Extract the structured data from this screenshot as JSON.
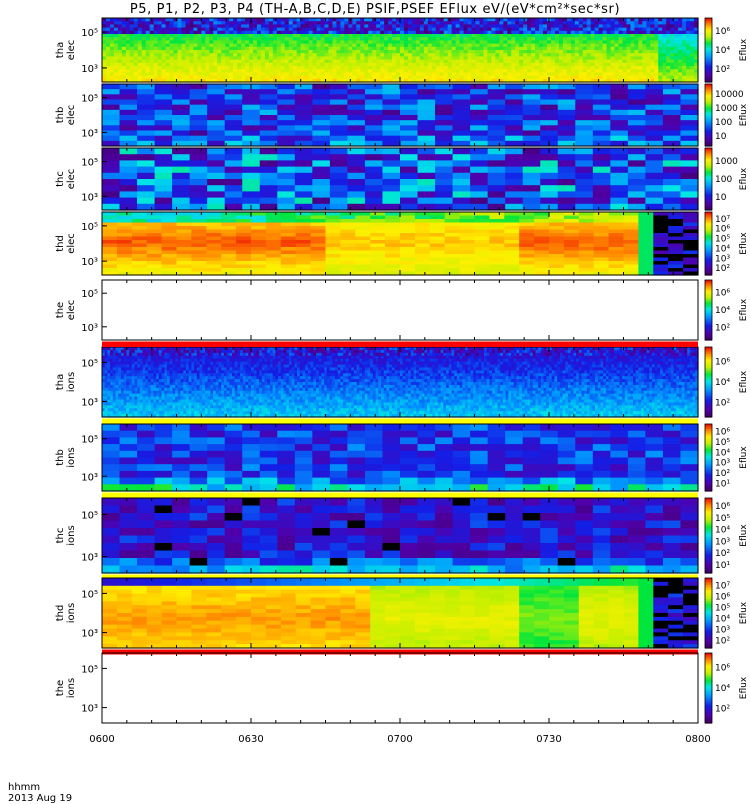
{
  "chart_data": {
    "type": "heatmap",
    "title": "P5, P1, P2, P3, P4 (TH-A,B,C,D,E) PSIF,PSEF EFlux eV/(eV*cm²*sec*sr)",
    "xlabel": "hhmm",
    "date_label": "2013 Aug 19",
    "x_ticks": [
      "0600",
      "0630",
      "0700",
      "0730",
      "0800"
    ],
    "xlim": [
      "0600",
      "0800"
    ],
    "colorbar_label": "Eflux",
    "panels": [
      {
        "name": "tha elec",
        "probe": "tha",
        "species": "elec",
        "ylog": true,
        "y_ticks": [
          "10⁵",
          "10³"
        ],
        "colorbar_ticks": [
          "10⁶",
          "10⁴",
          "10²"
        ],
        "status_bar": "none",
        "style": "elec_a"
      },
      {
        "name": "thb elec",
        "probe": "thb",
        "species": "elec",
        "ylog": true,
        "y_ticks": [
          "10⁵",
          "10³"
        ],
        "colorbar_ticks": [
          "10000",
          "1000",
          "100",
          "10"
        ],
        "status_bar": "none",
        "style": "blocky"
      },
      {
        "name": "thc elec",
        "probe": "thc",
        "species": "elec",
        "ylog": true,
        "y_ticks": [
          "10⁵",
          "10³"
        ],
        "colorbar_ticks": [
          "1000",
          "100",
          "10"
        ],
        "status_bar": "none",
        "style": "blocky2"
      },
      {
        "name": "thd elec",
        "probe": "thd",
        "species": "elec",
        "ylog": true,
        "y_ticks": [
          "10⁵",
          "10³"
        ],
        "colorbar_ticks": [
          "10⁷",
          "10⁶",
          "10⁵",
          "10⁴",
          "10³",
          "10²"
        ],
        "status_bar": "none",
        "style": "hot"
      },
      {
        "name": "the elec",
        "probe": "the",
        "species": "elec",
        "ylog": true,
        "y_ticks": [
          "10⁵",
          "10³"
        ],
        "colorbar_ticks": [
          "10⁶",
          "10⁴",
          "10²"
        ],
        "status_bar": "red",
        "style": "empty"
      },
      {
        "name": "tha ions",
        "probe": "tha",
        "species": "ions",
        "ylog": true,
        "y_ticks": [
          "10⁵",
          "10³"
        ],
        "colorbar_ticks": [
          "10⁶",
          "10⁴",
          "10²"
        ],
        "status_bar": "yellow",
        "style": "ions_a"
      },
      {
        "name": "thb ions",
        "probe": "thb",
        "species": "ions",
        "ylog": true,
        "y_ticks": [
          "10⁵",
          "10³"
        ],
        "colorbar_ticks": [
          "10⁶",
          "10⁵",
          "10⁴",
          "10³",
          "10²",
          "10¹"
        ],
        "status_bar": "yellow",
        "style": "ions_b"
      },
      {
        "name": "thc ions",
        "probe": "thc",
        "species": "ions",
        "ylog": true,
        "y_ticks": [
          "10⁵",
          "10³"
        ],
        "colorbar_ticks": [
          "10⁶",
          "10⁵",
          "10⁴",
          "10³",
          "10²",
          "10¹"
        ],
        "status_bar": "yellow",
        "style": "ions_c"
      },
      {
        "name": "thd ions",
        "probe": "thd",
        "species": "ions",
        "ylog": true,
        "y_ticks": [
          "10⁵",
          "10³"
        ],
        "colorbar_ticks": [
          "10⁷",
          "10⁶",
          "10⁵",
          "10⁴",
          "10³",
          "10²"
        ],
        "status_bar": "red",
        "style": "hot_ions"
      },
      {
        "name": "the ions",
        "probe": "the",
        "species": "ions",
        "ylog": true,
        "y_ticks": [
          "10⁵",
          "10³"
        ],
        "colorbar_ticks": [
          "10⁶",
          "10⁴",
          "10²"
        ],
        "status_bar": "none",
        "style": "empty"
      }
    ]
  },
  "colors": {
    "status_red": "#ff0000",
    "status_yellow": "#ffff00",
    "background": "#ffffff",
    "no_data_black": "#000000"
  }
}
